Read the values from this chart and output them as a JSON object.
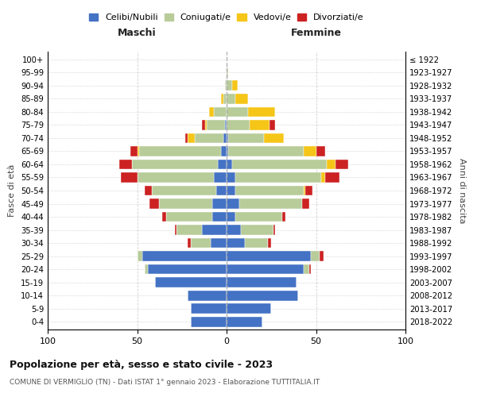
{
  "age_groups": [
    "0-4",
    "5-9",
    "10-14",
    "15-19",
    "20-24",
    "25-29",
    "30-34",
    "35-39",
    "40-44",
    "45-49",
    "50-54",
    "55-59",
    "60-64",
    "65-69",
    "70-74",
    "75-79",
    "80-84",
    "85-89",
    "90-94",
    "95-99",
    "100+"
  ],
  "birth_years": [
    "2018-2022",
    "2013-2017",
    "2008-2012",
    "2003-2007",
    "1998-2002",
    "1993-1997",
    "1988-1992",
    "1983-1987",
    "1978-1982",
    "1973-1977",
    "1968-1972",
    "1963-1967",
    "1958-1962",
    "1953-1957",
    "1948-1952",
    "1943-1947",
    "1938-1942",
    "1933-1937",
    "1928-1932",
    "1923-1927",
    "≤ 1922"
  ],
  "male": {
    "celibi": [
      20,
      20,
      22,
      40,
      44,
      47,
      9,
      14,
      8,
      8,
      6,
      7,
      5,
      3,
      2,
      1,
      0,
      0,
      0,
      0,
      0
    ],
    "coniugati": [
      0,
      0,
      0,
      0,
      2,
      3,
      11,
      14,
      26,
      30,
      36,
      43,
      48,
      46,
      16,
      10,
      7,
      2,
      1,
      0,
      0
    ],
    "vedovi": [
      0,
      0,
      0,
      0,
      0,
      0,
      0,
      0,
      0,
      0,
      0,
      0,
      0,
      1,
      4,
      1,
      3,
      1,
      0,
      0,
      0
    ],
    "divorziati": [
      0,
      0,
      0,
      0,
      0,
      0,
      2,
      1,
      2,
      5,
      4,
      9,
      7,
      4,
      1,
      2,
      0,
      0,
      0,
      0,
      0
    ]
  },
  "female": {
    "nubili": [
      20,
      25,
      40,
      39,
      43,
      47,
      10,
      8,
      5,
      7,
      5,
      5,
      3,
      1,
      1,
      0,
      0,
      0,
      0,
      0,
      0
    ],
    "coniugate": [
      0,
      0,
      0,
      0,
      3,
      5,
      13,
      18,
      26,
      35,
      38,
      48,
      53,
      42,
      20,
      13,
      12,
      5,
      3,
      1,
      0
    ],
    "vedove": [
      0,
      0,
      0,
      0,
      0,
      0,
      0,
      0,
      0,
      0,
      1,
      2,
      5,
      7,
      11,
      11,
      15,
      7,
      3,
      0,
      0
    ],
    "divorziate": [
      0,
      0,
      0,
      0,
      1,
      2,
      2,
      1,
      2,
      4,
      4,
      8,
      7,
      5,
      0,
      3,
      0,
      0,
      0,
      0,
      0
    ]
  },
  "colors": {
    "celibi": "#4472c4",
    "coniugati": "#b8cc99",
    "vedovi": "#f5c518",
    "divorziati": "#cc2222"
  },
  "title": "Popolazione per età, sesso e stato civile - 2023",
  "subtitle": "COMUNE DI VERMIGLIO (TN) - Dati ISTAT 1° gennaio 2023 - Elaborazione TUTTITALIA.IT",
  "xlabel_left": "Maschi",
  "xlabel_right": "Femmine",
  "ylabel_left": "Fasce di età",
  "ylabel_right": "Anni di nascita",
  "xlim": 100,
  "background": "#ffffff",
  "grid_color": "#cccccc"
}
